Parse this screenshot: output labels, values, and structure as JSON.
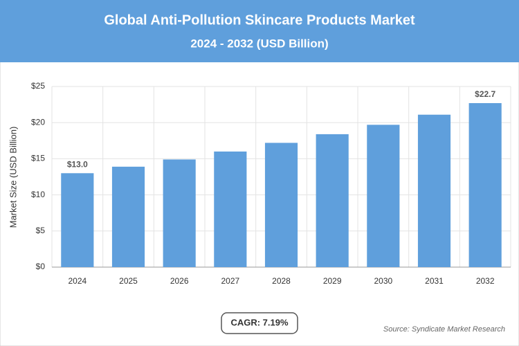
{
  "chart_data": {
    "type": "bar",
    "title": "Global Anti-Pollution Skincare Products Market",
    "subtitle": "2024 - 2032 (USD Billion)",
    "y_label": "Market Size (USD Billion)",
    "categories": [
      "2024",
      "2025",
      "2026",
      "2027",
      "2028",
      "2029",
      "2030",
      "2031",
      "2032"
    ],
    "values": [
      13.0,
      13.9,
      14.9,
      16.0,
      17.2,
      18.4,
      19.7,
      21.1,
      22.7
    ],
    "value_labels": [
      "$13.0",
      null,
      null,
      null,
      null,
      null,
      null,
      null,
      "$22.7"
    ],
    "color": "#5f9fdc",
    "ylim": [
      0,
      25
    ],
    "yticks": [
      {
        "value": 0,
        "label": "$0"
      },
      {
        "value": 5,
        "label": "$5"
      },
      {
        "value": 10,
        "label": "$10"
      },
      {
        "value": 15,
        "label": "$15"
      },
      {
        "value": 20,
        "label": "$20"
      },
      {
        "value": 25,
        "label": "$25"
      }
    ],
    "grid": true,
    "annotation": "CAGR: 7.19%",
    "source": "Source: Syndicate Market Research"
  }
}
